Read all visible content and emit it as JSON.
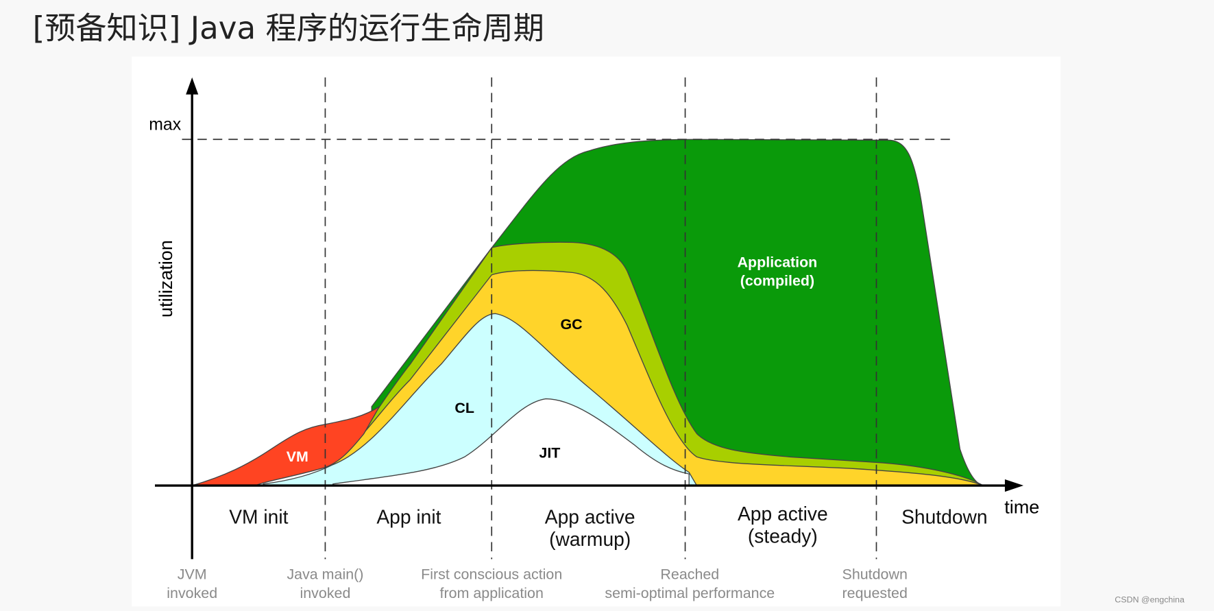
{
  "header": {
    "title": "[预备知识] Java 程序的运行生命周期"
  },
  "diagram": {
    "y_axis_label": "utilization",
    "max_label": "max",
    "x_axis_label": "time",
    "areas": [
      {
        "lines": [
          "VM"
        ]
      },
      {
        "lines": [
          "CL"
        ]
      },
      {
        "lines": [
          "JIT"
        ]
      },
      {
        "lines": [
          "GC"
        ]
      },
      {
        "lines": [
          "Application",
          "(compiled)"
        ]
      }
    ],
    "phases": [
      {
        "lines": [
          "VM init"
        ]
      },
      {
        "lines": [
          "App init"
        ]
      },
      {
        "lines": [
          "App active",
          "(warmup)"
        ]
      },
      {
        "lines": [
          "App active",
          "(steady)"
        ]
      },
      {
        "lines": [
          "Shutdown"
        ]
      }
    ],
    "events": [
      {
        "lines": [
          "JVM",
          "invoked"
        ]
      },
      {
        "lines": [
          "Java main()",
          "invoked"
        ]
      },
      {
        "lines": [
          "First conscious action",
          "from application"
        ]
      },
      {
        "lines": [
          "Reached",
          "semi-optimal performance"
        ]
      },
      {
        "lines": [
          "Shutdown",
          "requested"
        ]
      }
    ]
  },
  "watermark": "CSDN @engchina"
}
